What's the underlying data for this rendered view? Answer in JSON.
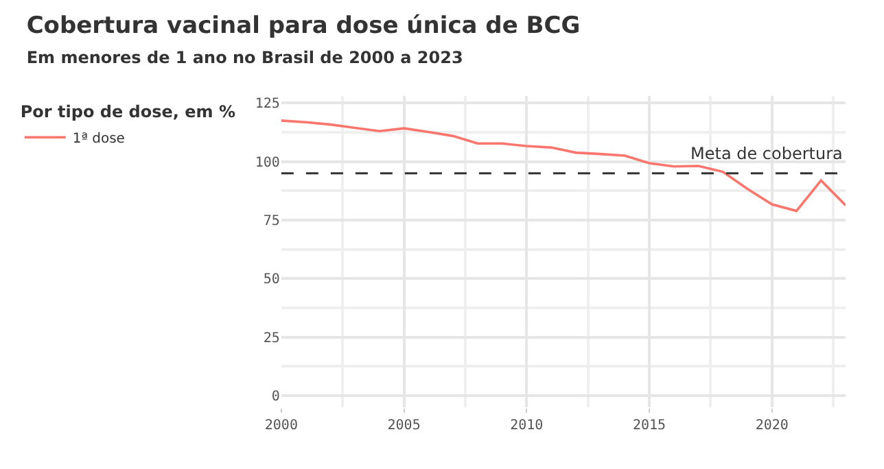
{
  "chart_data": {
    "type": "line",
    "title": "Cobertura vacinal para dose única de BCG",
    "subtitle": "Em menores de 1 ano no Brasil de 2000 a 2023",
    "legend_title": "Por tipo de dose, em %",
    "x": [
      2000,
      2001,
      2002,
      2003,
      2004,
      2005,
      2006,
      2007,
      2008,
      2009,
      2010,
      2011,
      2012,
      2013,
      2014,
      2015,
      2016,
      2017,
      2018,
      2019,
      2020,
      2021,
      2022,
      2023
    ],
    "series": [
      {
        "name": "1ª dose",
        "color": "#f8766d",
        "values": [
          117.5,
          116.8,
          115.8,
          114.4,
          113.0,
          114.2,
          112.6,
          110.9,
          107.7,
          107.7,
          106.6,
          106.0,
          103.8,
          103.2,
          102.5,
          99.3,
          97.9,
          98.1,
          95.6,
          88.3,
          81.7,
          78.9,
          91.9,
          81.3
        ]
      }
    ],
    "ref_lines": [
      {
        "axis": "y",
        "value": 95,
        "label": "Meta de cobertura",
        "color": "#333333",
        "line_style": "dashed"
      }
    ],
    "xlim": [
      2000,
      2023
    ],
    "xticks": [
      2000,
      2005,
      2010,
      2015,
      2020
    ],
    "ylim": [
      -5,
      128
    ],
    "yticks": [
      0,
      25,
      50,
      75,
      100,
      125
    ],
    "grid": true,
    "legend": "left",
    "line_style": "solid",
    "marker": "none"
  }
}
